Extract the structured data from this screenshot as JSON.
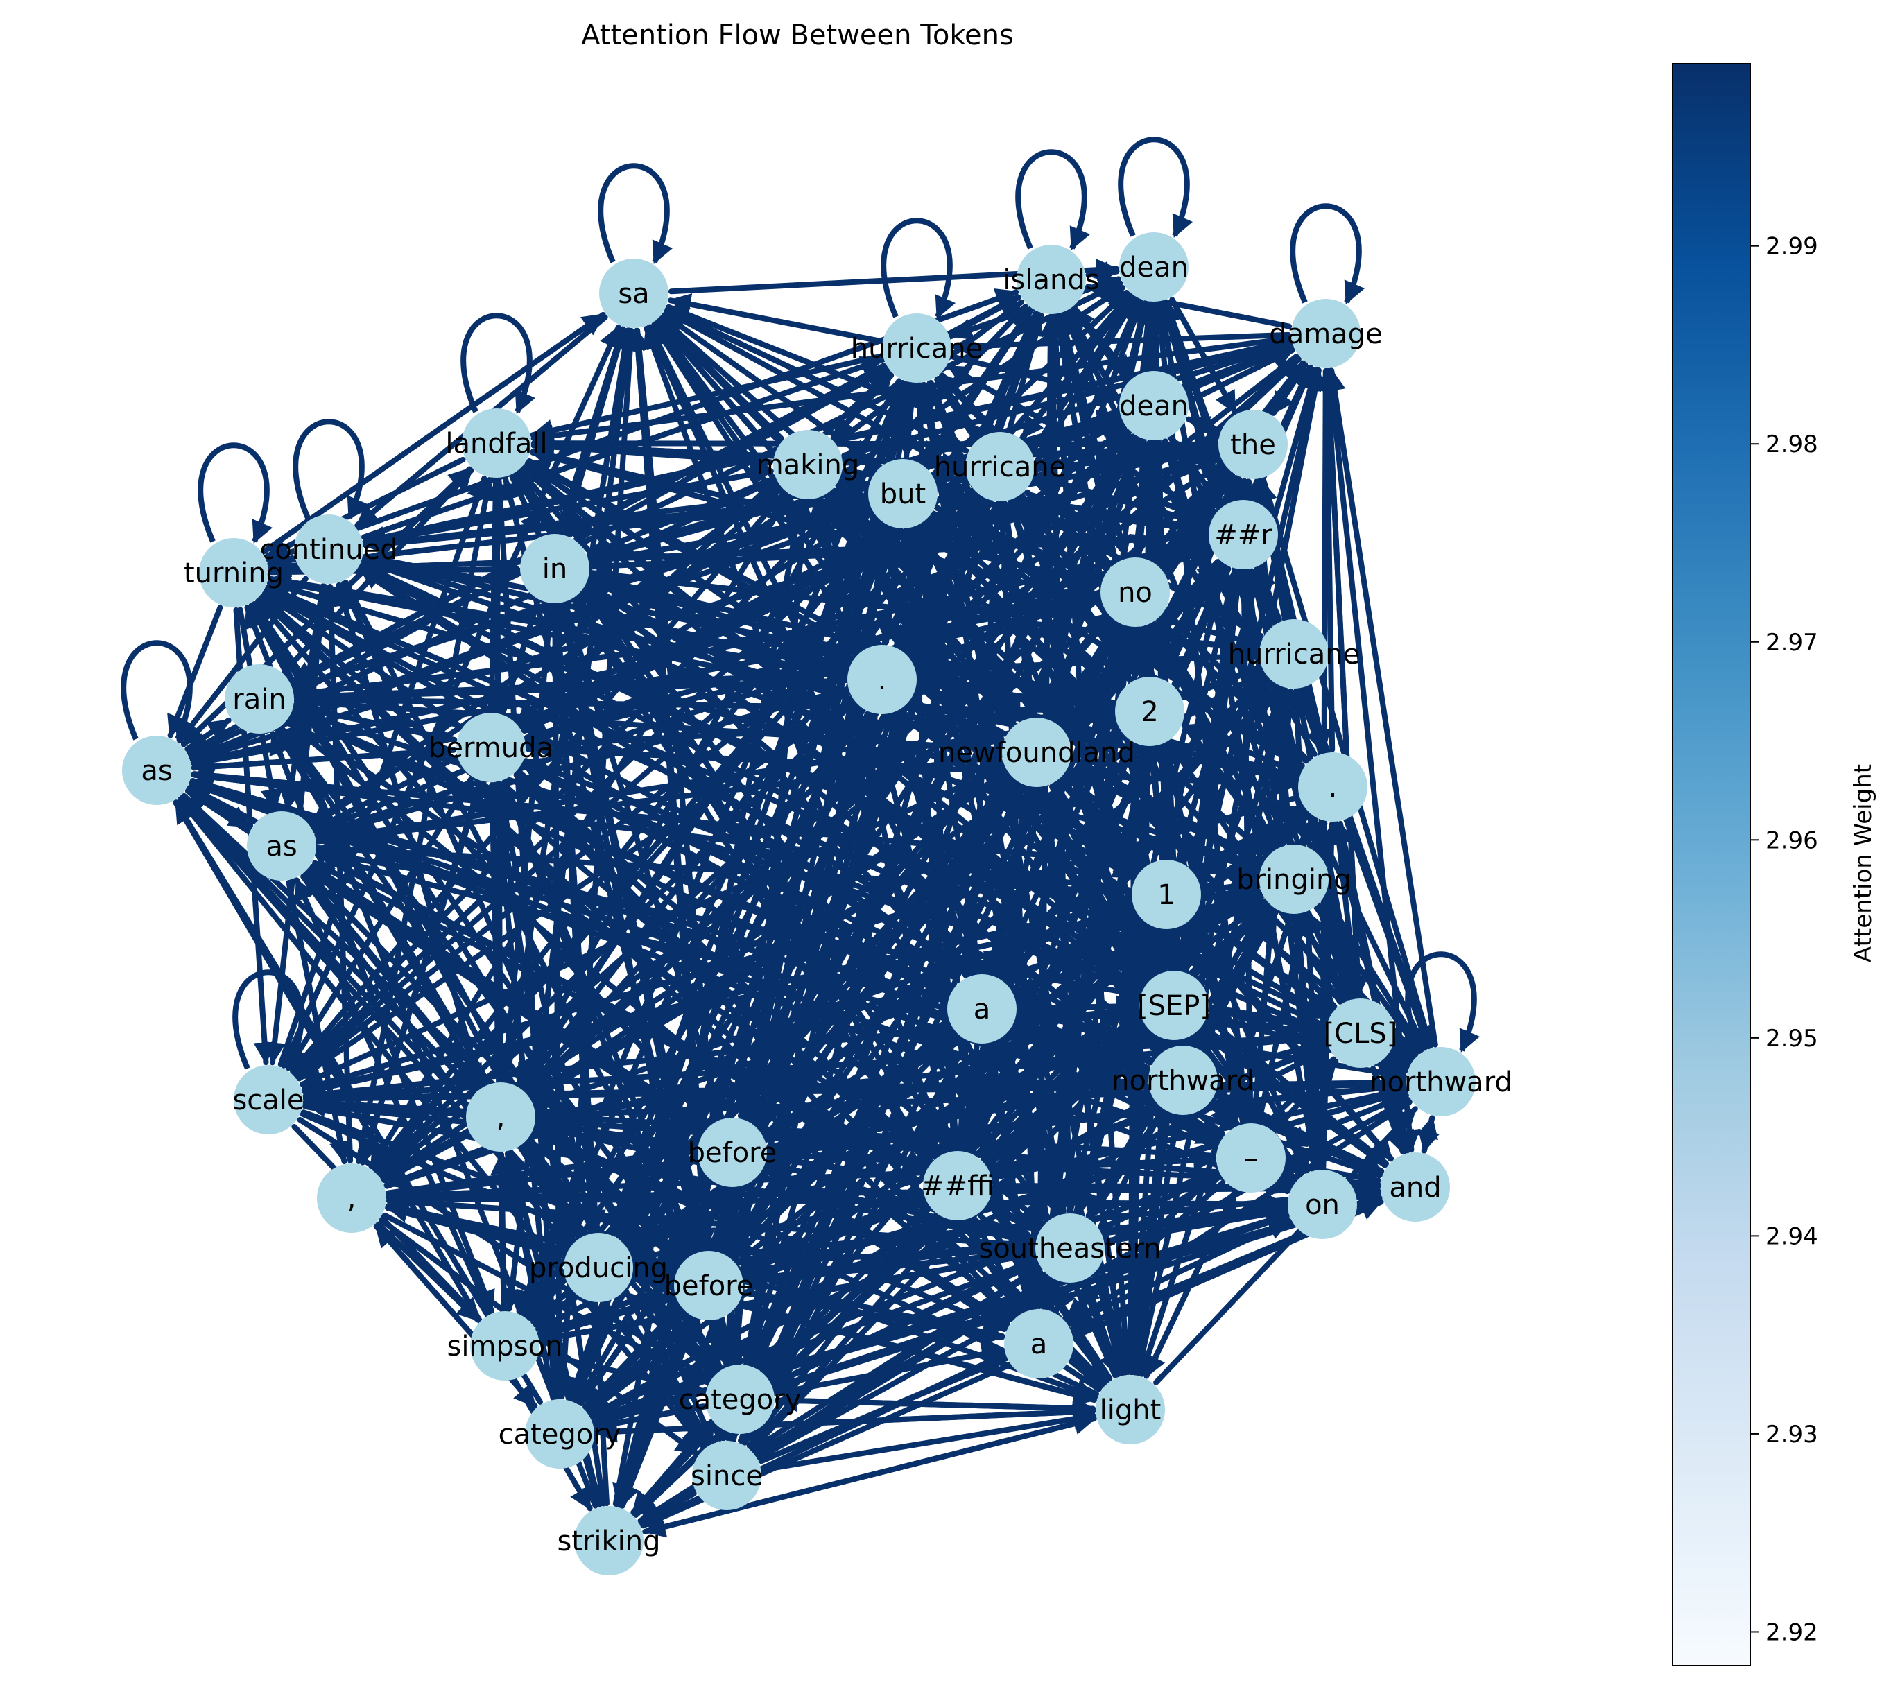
{
  "title": "Attention Flow Between Tokens",
  "colorbar": {
    "label": "Attention Weight",
    "ticks": [
      "2.92",
      "2.93",
      "2.94",
      "2.95",
      "2.96",
      "2.97",
      "2.98",
      "2.99"
    ],
    "tick_values": [
      2.92,
      2.93,
      2.94,
      2.95,
      2.96,
      2.97,
      2.98,
      2.99
    ],
    "range": [
      2.9183,
      2.9992
    ],
    "colormap": "Blues",
    "colors": [
      "#f7fbff",
      "#deebf7",
      "#c6dbef",
      "#9ecae1",
      "#6baed6",
      "#4292c6",
      "#2171b5",
      "#08519c",
      "#08306b"
    ]
  },
  "colors": {
    "edge": "#08306b",
    "node_fill": "#add8e6",
    "label": "#000000"
  },
  "nodes": [
    {
      "id": "sa",
      "label": "sa"
    },
    {
      "id": "islands",
      "label": "islands"
    },
    {
      "id": "dean1",
      "label": "dean"
    },
    {
      "id": "hurricane1",
      "label": "hurricane"
    },
    {
      "id": "damage",
      "label": "damage"
    },
    {
      "id": "dean2",
      "label": "dean"
    },
    {
      "id": "landfall",
      "label": "landfall"
    },
    {
      "id": "the",
      "label": "the"
    },
    {
      "id": "making",
      "label": "making"
    },
    {
      "id": "hurricane2",
      "label": "hurricane"
    },
    {
      "id": "but",
      "label": "but"
    },
    {
      "id": "hashr",
      "label": "##r"
    },
    {
      "id": "continued",
      "label": "continued"
    },
    {
      "id": "turning",
      "label": "turning"
    },
    {
      "id": "in",
      "label": "in"
    },
    {
      "id": "no",
      "label": "no"
    },
    {
      "id": "hurricane3",
      "label": "hurricane"
    },
    {
      "id": "period1",
      "label": "."
    },
    {
      "id": "rain",
      "label": "rain"
    },
    {
      "id": "two",
      "label": "2"
    },
    {
      "id": "as1",
      "label": "as"
    },
    {
      "id": "bermuda",
      "label": "bermuda"
    },
    {
      "id": "newfoundland",
      "label": "newfoundland"
    },
    {
      "id": "period2",
      "label": "."
    },
    {
      "id": "as2",
      "label": "as"
    },
    {
      "id": "bringing",
      "label": "bringing"
    },
    {
      "id": "one",
      "label": "1"
    },
    {
      "id": "a1",
      "label": "a"
    },
    {
      "id": "sep",
      "label": "[SEP]"
    },
    {
      "id": "cls",
      "label": "[CLS]"
    },
    {
      "id": "northward1",
      "label": "northward"
    },
    {
      "id": "northward2",
      "label": "northward"
    },
    {
      "id": "scale",
      "label": "scale"
    },
    {
      "id": "comma1",
      "label": ","
    },
    {
      "id": "before1",
      "label": "before"
    },
    {
      "id": "dash",
      "label": "–"
    },
    {
      "id": "hashffi",
      "label": "##ffi"
    },
    {
      "id": "and",
      "label": "and"
    },
    {
      "id": "on",
      "label": "on"
    },
    {
      "id": "comma2",
      "label": ","
    },
    {
      "id": "southeastern",
      "label": "southeastern"
    },
    {
      "id": "producing",
      "label": "producing"
    },
    {
      "id": "before2",
      "label": "before"
    },
    {
      "id": "a2",
      "label": "a"
    },
    {
      "id": "simpson",
      "label": "simpson"
    },
    {
      "id": "category1",
      "label": "category"
    },
    {
      "id": "light",
      "label": "light"
    },
    {
      "id": "category2",
      "label": "category"
    },
    {
      "id": "since",
      "label": "since"
    },
    {
      "id": "striking",
      "label": "striking"
    }
  ]
}
